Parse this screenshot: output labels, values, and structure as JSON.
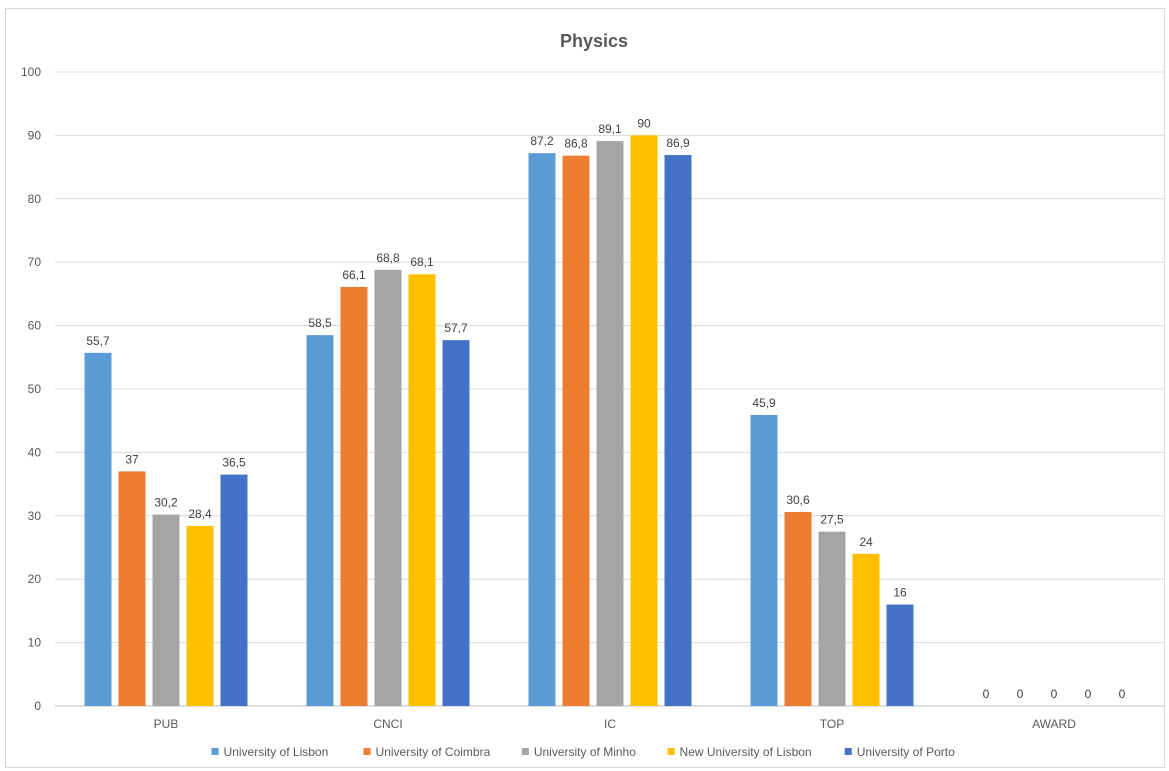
{
  "chart_data": {
    "type": "bar",
    "title": "Physics",
    "xlabel": "",
    "ylabel": "",
    "ylim": [
      0,
      100
    ],
    "yticks": [
      0,
      10,
      20,
      30,
      40,
      50,
      60,
      70,
      80,
      90,
      100
    ],
    "grid": true,
    "legend_position": "bottom",
    "categories": [
      "PUB",
      "CNCI",
      "IC",
      "TOP",
      "AWARD"
    ],
    "series": [
      {
        "name": "University of Lisbon",
        "color": "#5b9bd5",
        "values": [
          55.7,
          58.5,
          87.2,
          45.9,
          0
        ],
        "labels": [
          "55,7",
          "58,5",
          "87,2",
          "45,9",
          "0"
        ]
      },
      {
        "name": "University of Coimbra",
        "color": "#ed7d31",
        "values": [
          37,
          66.1,
          86.8,
          30.6,
          0
        ],
        "labels": [
          "37",
          "66,1",
          "86,8",
          "30,6",
          "0"
        ]
      },
      {
        "name": "University of Minho",
        "color": "#a5a5a5",
        "values": [
          30.2,
          68.8,
          89.1,
          27.5,
          0
        ],
        "labels": [
          "30,2",
          "68,8",
          "89,1",
          "27,5",
          "0"
        ]
      },
      {
        "name": "New University of Lisbon",
        "color": "#ffc000",
        "values": [
          28.4,
          68.1,
          90,
          24,
          0
        ],
        "labels": [
          "28,4",
          "68,1",
          "90",
          "24",
          "0"
        ]
      },
      {
        "name": "University of Porto",
        "color": "#4472c4",
        "values": [
          36.5,
          57.7,
          86.9,
          16,
          0
        ],
        "labels": [
          "36,5",
          "57,7",
          "86,9",
          "16",
          "0"
        ]
      }
    ]
  }
}
